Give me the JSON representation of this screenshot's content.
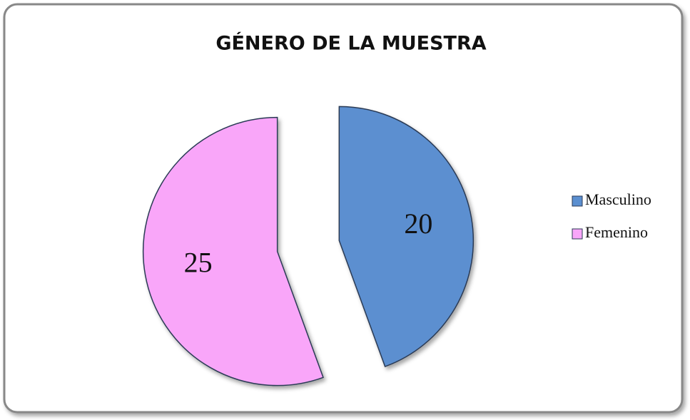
{
  "chart_data": {
    "type": "pie",
    "title": "GÉNERO DE LA MUESTRA",
    "categories": [
      "Masculino",
      "Femenino"
    ],
    "values": [
      20,
      25
    ],
    "colors": [
      "#5b8fd0",
      "#f9a6f9"
    ],
    "legend": "right",
    "exploded": true
  }
}
